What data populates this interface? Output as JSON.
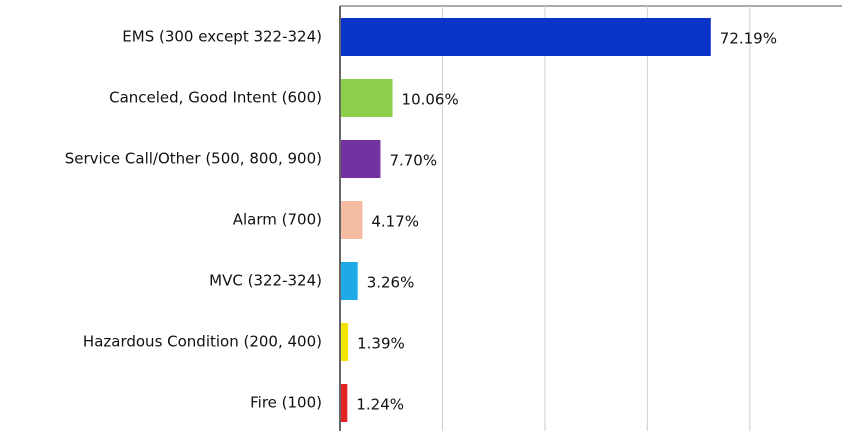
{
  "chart_data": {
    "type": "hbar",
    "categories": [
      "EMS (300 except 322-324)",
      "Canceled, Good Intent (600)",
      "Service Call/Other (500, 800, 900)",
      "Alarm (700)",
      "MVC (322-324)",
      "Hazardous Condition (200, 400)",
      "Fire (100)"
    ],
    "values": [
      72.19,
      10.06,
      7.7,
      4.17,
      3.26,
      1.39,
      1.24
    ],
    "value_labels": [
      "72.19%",
      "10.06%",
      "7.70%",
      "4.17%",
      "3.26%",
      "1.39%",
      "1.24%"
    ],
    "colors": [
      "#0a34c8",
      "#8ccf4d",
      "#7232a0",
      "#f5bca4",
      "#1eaae6",
      "#f2e600",
      "#e02424"
    ],
    "xlim": [
      0,
      98
    ],
    "xticks": [
      0,
      20,
      40,
      60,
      80
    ],
    "grid": true
  }
}
